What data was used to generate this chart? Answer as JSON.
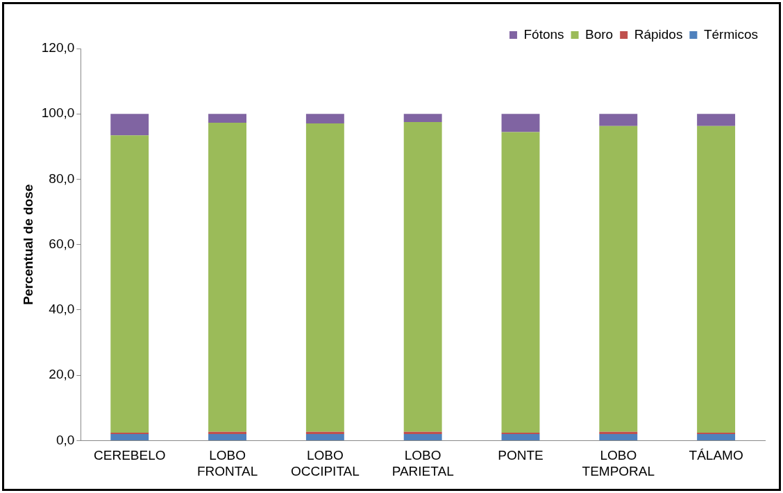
{
  "chart_data": {
    "type": "bar",
    "stacked": true,
    "ylabel": "Percentual de dose",
    "categories": [
      "CEREBELO",
      "LOBO FRONTAL",
      "LOBO OCCIPITAL",
      "LOBO PARIETAL",
      "PONTE",
      "LOBO TEMPORAL",
      "TÁLAMO"
    ],
    "series": [
      {
        "name": "Térmicos",
        "color": "#4f81bd",
        "values": [
          2.0,
          2.0,
          2.0,
          2.0,
          2.0,
          2.0,
          2.0
        ]
      },
      {
        "name": "Rápidos",
        "color": "#c0504d",
        "values": [
          0.4,
          0.7,
          0.7,
          0.7,
          0.4,
          0.7,
          0.4
        ]
      },
      {
        "name": "Boro",
        "color": "#9bbb59",
        "values": [
          91.0,
          94.6,
          94.4,
          94.8,
          92.0,
          93.6,
          93.9
        ]
      },
      {
        "name": "Fótons",
        "color": "#8064a2",
        "values": [
          6.6,
          2.7,
          2.9,
          2.5,
          5.6,
          3.7,
          3.7
        ]
      }
    ],
    "ylim": [
      0,
      120
    ],
    "yticks": [
      {
        "value": 0,
        "label": "0,0"
      },
      {
        "value": 20,
        "label": "20,0"
      },
      {
        "value": 40,
        "label": "40,0"
      },
      {
        "value": 60,
        "label": "60,0"
      },
      {
        "value": 80,
        "label": "80,0"
      },
      {
        "value": 100,
        "label": "100,0"
      },
      {
        "value": 120,
        "label": "120,0"
      }
    ],
    "grid": false,
    "legend": "top right"
  }
}
